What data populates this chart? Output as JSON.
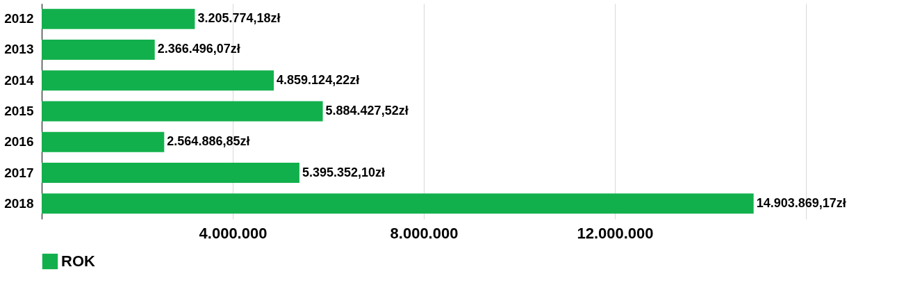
{
  "chart_data": {
    "type": "bar",
    "orientation": "horizontal",
    "categories": [
      "2012",
      "2013",
      "2014",
      "2015",
      "2016",
      "2017",
      "2018"
    ],
    "series": [
      {
        "name": "ROK",
        "color": "#12b04c",
        "values": [
          3205774.18,
          2366496.07,
          4859124.22,
          5884427.52,
          2564886.85,
          5395352.1,
          14903869.17
        ],
        "value_labels": [
          "3.205.774,18zł",
          "2.366.496,07zł",
          "4.859.124,22zł",
          "5.884.427,52zł",
          "2.564.886,85zł",
          "5.395.352,10zł",
          "14.903.869,17zł"
        ]
      }
    ],
    "xlim": [
      0,
      16000000
    ],
    "xticks": [
      {
        "value": 4000000,
        "label": "4.000.000"
      },
      {
        "value": 8000000,
        "label": "8.000.000"
      },
      {
        "value": 12000000,
        "label": "12.000.000"
      },
      {
        "value": 16000000,
        "label": null
      }
    ],
    "grid": "x",
    "legend": "bottom"
  }
}
